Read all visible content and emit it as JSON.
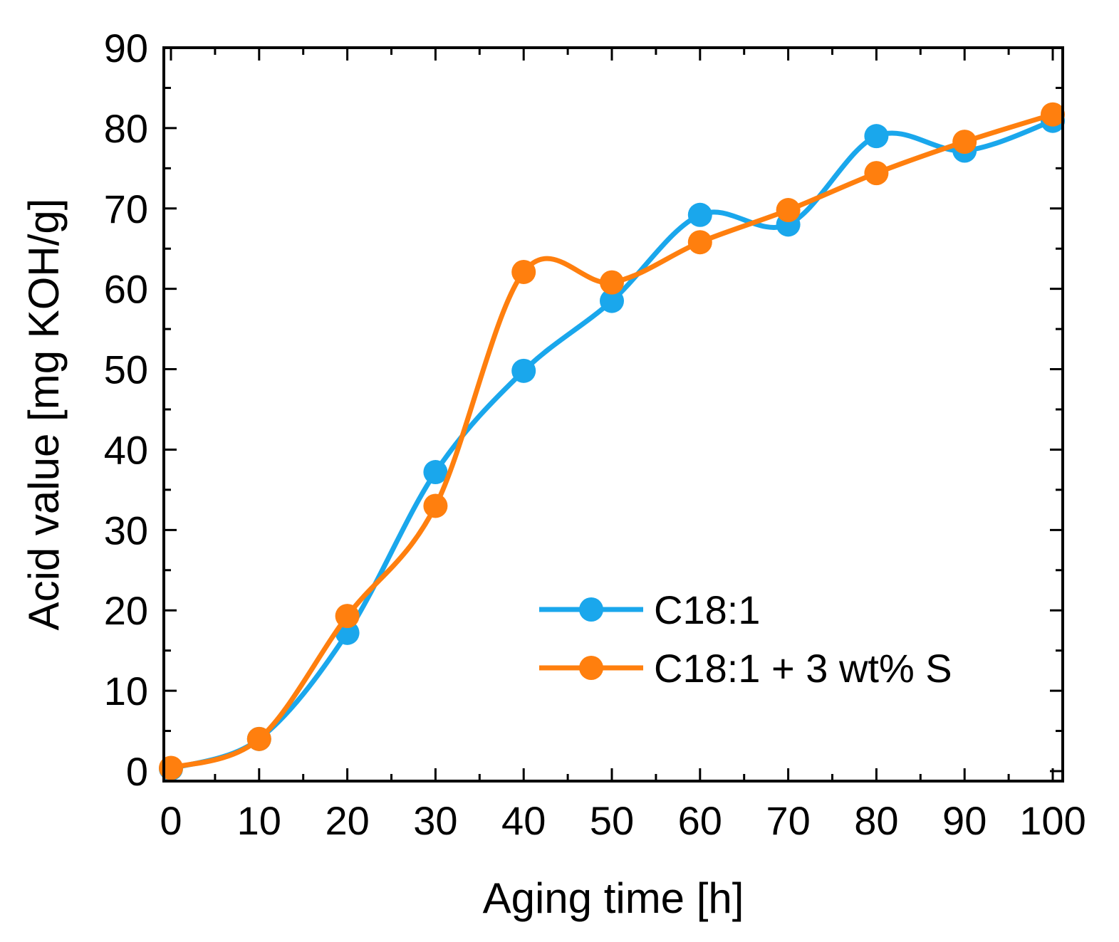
{
  "chart_data": {
    "type": "line",
    "title": "",
    "xlabel": "Aging time [h]",
    "ylabel": "Acid value [mg KOH/g]",
    "xlim": [
      0,
      100
    ],
    "ylim": [
      0,
      90
    ],
    "x_ticks": [
      0,
      10,
      20,
      30,
      40,
      50,
      60,
      70,
      80,
      90,
      100
    ],
    "y_ticks": [
      0,
      10,
      20,
      30,
      40,
      50,
      60,
      70,
      80,
      90
    ],
    "grid": false,
    "legend_position": "center-right",
    "smooth": true,
    "series": [
      {
        "name": "C18:1",
        "color": "#1AA7EC",
        "x": [
          0,
          10,
          20,
          30,
          40,
          50,
          60,
          70,
          80,
          90,
          100
        ],
        "values": [
          0.3,
          4.0,
          17.2,
          37.2,
          49.8,
          58.5,
          69.2,
          68.0,
          79.0,
          77.2,
          80.9
        ]
      },
      {
        "name": "C18:1 + 3 wt% S",
        "color": "#FF7F0E",
        "x": [
          0,
          10,
          20,
          30,
          40,
          50,
          60,
          70,
          80,
          90,
          100
        ],
        "values": [
          0.4,
          4.0,
          19.3,
          33.0,
          62.1,
          60.8,
          65.8,
          69.8,
          74.4,
          78.3,
          81.7
        ]
      }
    ]
  }
}
